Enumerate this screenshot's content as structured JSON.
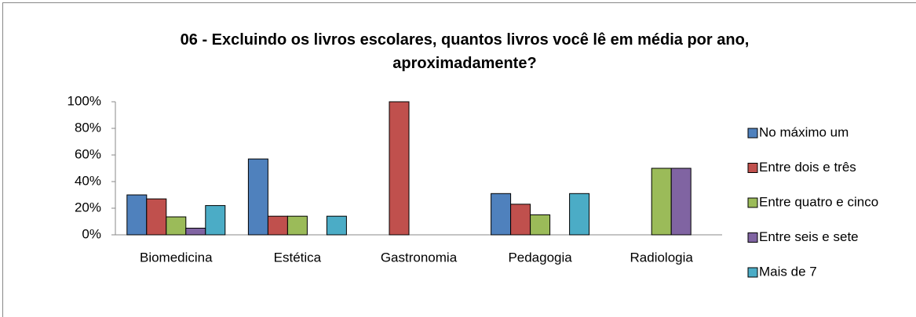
{
  "chart_data": {
    "type": "bar",
    "title": "06 - Excluindo os livros escolares, quantos livros você lê em média por ano, aproximadamente?",
    "categories": [
      "Biomedicina",
      "Estética",
      "Gastronomia",
      "Pedagogia",
      "Radiologia"
    ],
    "series": [
      {
        "name": "No máximo um",
        "color": "#4f81bd",
        "values": [
          30,
          57,
          0,
          31,
          0
        ]
      },
      {
        "name": "Entre dois e três",
        "color": "#c0504d",
        "values": [
          27,
          14,
          100,
          23,
          0
        ]
      },
      {
        "name": "Entre quatro e cinco",
        "color": "#9bbb59",
        "values": [
          13.5,
          14,
          0,
          15,
          50
        ]
      },
      {
        "name": "Entre seis e sete",
        "color": "#8064a2",
        "values": [
          5,
          0,
          0,
          0,
          50
        ]
      },
      {
        "name": "Mais de 7",
        "color": "#4bacc6",
        "values": [
          22,
          14,
          0,
          31,
          0
        ]
      }
    ],
    "ylim": [
      0,
      100
    ],
    "yticks": [
      {
        "value": 0,
        "label": "0%"
      },
      {
        "value": 20,
        "label": "20%"
      },
      {
        "value": 40,
        "label": "40%"
      },
      {
        "value": 60,
        "label": "60%"
      },
      {
        "value": 80,
        "label": "80%"
      },
      {
        "value": 100,
        "label": "100%"
      }
    ],
    "legend": "right"
  }
}
